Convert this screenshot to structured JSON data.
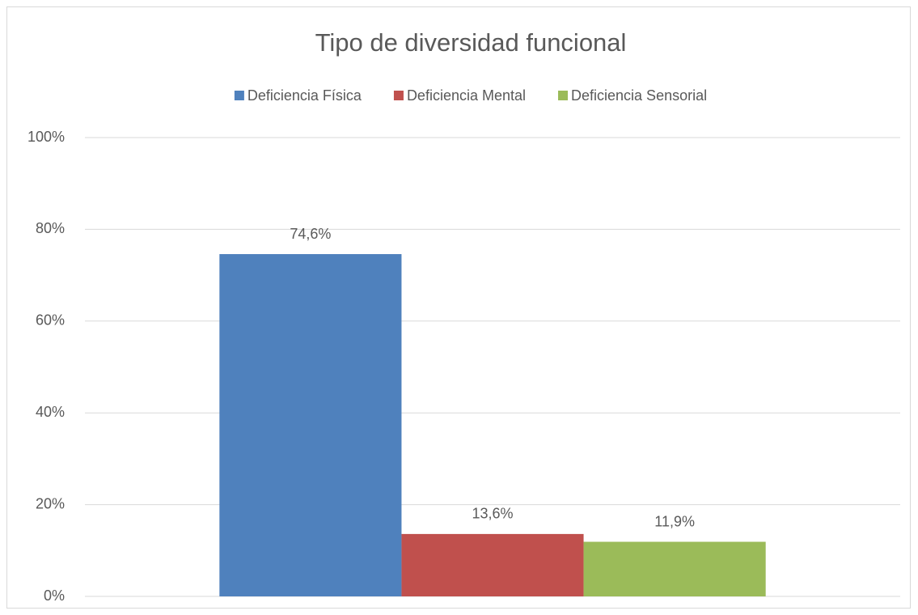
{
  "chart_data": {
    "type": "bar",
    "title": "Tipo de diversidad funcional",
    "categories": [
      null
    ],
    "series": [
      {
        "name": "Deficiencia Física",
        "color": "#4f81bd",
        "values": [
          74.6
        ],
        "value_labels": [
          "74,6%"
        ]
      },
      {
        "name": "Deficiencia Mental",
        "color": "#c0504d",
        "values": [
          13.6
        ],
        "value_labels": [
          "13,6%"
        ]
      },
      {
        "name": "Deficiencia Sensorial",
        "color": "#9bbb59",
        "values": [
          11.9
        ],
        "value_labels": [
          "11,9%"
        ]
      }
    ],
    "ylim": [
      0,
      100
    ],
    "yticks": [
      {
        "value": 0,
        "label": "0%"
      },
      {
        "value": 20,
        "label": "20%"
      },
      {
        "value": 40,
        "label": "40%"
      },
      {
        "value": 60,
        "label": "60%"
      },
      {
        "value": 80,
        "label": "80%"
      },
      {
        "value": 100,
        "label": "100%"
      }
    ],
    "grid": true,
    "legend": "top"
  }
}
